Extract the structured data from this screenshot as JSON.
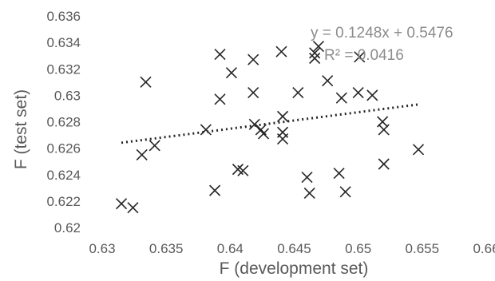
{
  "chart_data": {
    "type": "scatter",
    "xlabel": "F (development set)",
    "ylabel": "F (test set)",
    "xlim": [
      0.63,
      0.66
    ],
    "ylim": [
      0.62,
      0.636
    ],
    "x_ticks": [
      "0.63",
      "0.635",
      "0.64",
      "0.645",
      "0.65",
      "0.655",
      "0.66"
    ],
    "y_ticks": [
      "0.62",
      "0.622",
      "0.624",
      "0.626",
      "0.628",
      "0.63",
      "0.632",
      "0.634",
      "0.636"
    ],
    "grid": false,
    "marker": "x",
    "marker_color": "#262626",
    "trendline": {
      "type": "linear",
      "slope": 0.1248,
      "intercept": 0.5476,
      "style": "dotted",
      "color": "#262626"
    },
    "annotations": [
      "y = 0.1248x + 0.5476",
      "R² = 0.0416"
    ],
    "points": [
      [
        0.6315,
        0.6218
      ],
      [
        0.6324,
        0.6215
      ],
      [
        0.6331,
        0.6255
      ],
      [
        0.6334,
        0.631
      ],
      [
        0.6341,
        0.6262
      ],
      [
        0.6381,
        0.6274
      ],
      [
        0.6388,
        0.6228
      ],
      [
        0.6392,
        0.6297
      ],
      [
        0.6392,
        0.6331
      ],
      [
        0.6401,
        0.6317
      ],
      [
        0.6406,
        0.6244
      ],
      [
        0.641,
        0.6243
      ],
      [
        0.6418,
        0.6327
      ],
      [
        0.6418,
        0.6302
      ],
      [
        0.6419,
        0.6278
      ],
      [
        0.6424,
        0.6274
      ],
      [
        0.6426,
        0.6271
      ],
      [
        0.644,
        0.6333
      ],
      [
        0.6441,
        0.6284
      ],
      [
        0.6441,
        0.6272
      ],
      [
        0.6441,
        0.6267
      ],
      [
        0.6453,
        0.6302
      ],
      [
        0.646,
        0.6238
      ],
      [
        0.6462,
        0.6226
      ],
      [
        0.6466,
        0.6332
      ],
      [
        0.6466,
        0.6328
      ],
      [
        0.6469,
        0.6337
      ],
      [
        0.6476,
        0.6311
      ],
      [
        0.6485,
        0.6241
      ],
      [
        0.6487,
        0.6298
      ],
      [
        0.649,
        0.6227
      ],
      [
        0.65,
        0.6302
      ],
      [
        0.6501,
        0.6329
      ],
      [
        0.6511,
        0.63
      ],
      [
        0.6519,
        0.628
      ],
      [
        0.652,
        0.6274
      ],
      [
        0.652,
        0.6248
      ],
      [
        0.6547,
        0.6259
      ]
    ]
  }
}
